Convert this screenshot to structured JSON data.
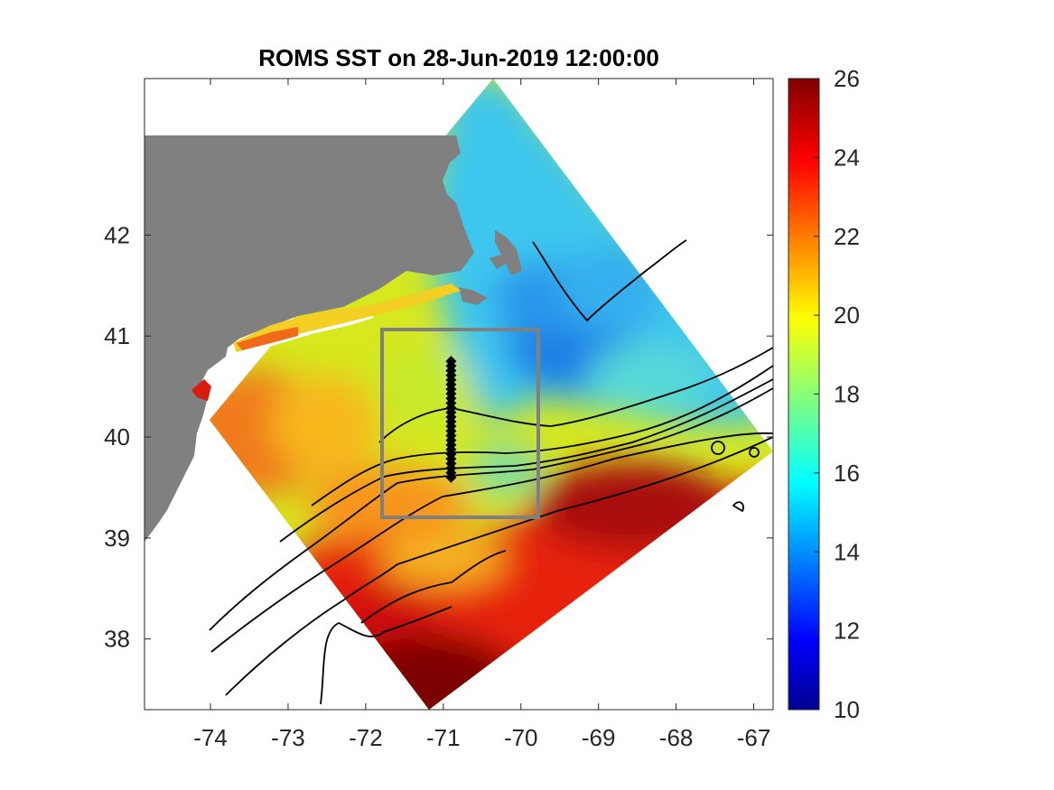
{
  "title": "ROMS SST on 28-Jun-2019 12:00:00",
  "map": {
    "x_ticks": [
      "-74",
      "-73",
      "-72",
      "-71",
      "-70",
      "-69",
      "-68",
      "-67"
    ],
    "x_tick_values": [
      -74,
      -73,
      -72,
      -71,
      -70,
      -69,
      -68,
      -67
    ],
    "y_ticks": [
      "38",
      "39",
      "40",
      "41",
      "42"
    ],
    "y_tick_values": [
      38,
      39,
      40,
      41,
      42
    ],
    "xlim": [
      -74.85,
      -66.75
    ],
    "ylim": [
      37.3,
      43.55
    ],
    "land_color": "#808080",
    "contour_color": "#000000",
    "box": {
      "lon": [
        -71.8,
        -69.8
      ],
      "lat": [
        39.25,
        41.1
      ],
      "color": "#808080"
    },
    "transect": {
      "lon": -70.9,
      "lat_start": 40.75,
      "lat_end": 39.6,
      "count": 26,
      "color": "#000000"
    }
  },
  "colorbar": {
    "labels": [
      "26",
      "24",
      "22",
      "20",
      "18",
      "16",
      "14",
      "12",
      "10"
    ],
    "values": [
      26,
      24,
      22,
      20,
      18,
      16,
      14,
      12,
      10
    ],
    "range": [
      10,
      26
    ],
    "colormap": "jet"
  }
}
